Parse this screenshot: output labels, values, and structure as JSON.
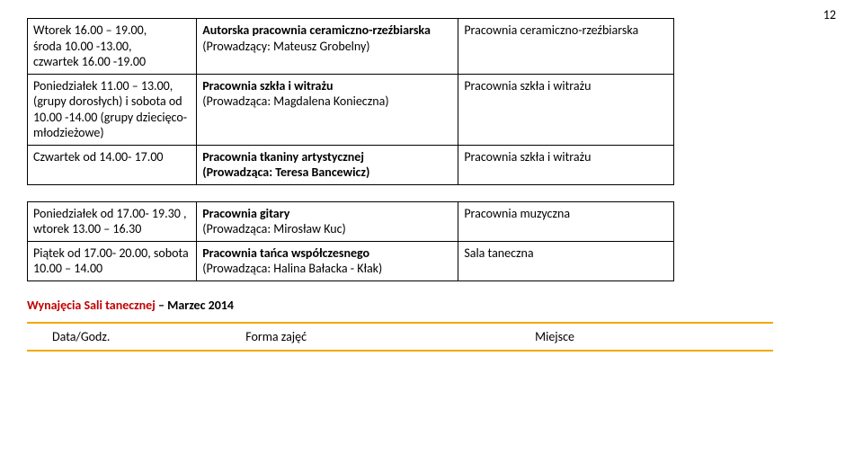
{
  "pageNumber": "12",
  "table1": {
    "rows": [
      {
        "c1": "Wtorek 16.00 – 19.00,\nśroda 10.00 -13.00,\nczwartek 16.00 -19.00",
        "c2_bold": "Autorska pracownia ceramiczno-rzeźbiarska",
        "c2_plain": "(Prowadzący: Mateusz Grobelny)",
        "c3": "Pracownia ceramiczno-rzeźbiarska"
      },
      {
        "c1": "Poniedziałek 11.00 – 13.00, (grupy dorosłych) i sobota od 10.00 -14.00 (grupy dziecięco-młodzieżowe)",
        "c2_bold": "Pracownia szkła i witrażu",
        "c2_plain": "(Prowadząca: Magdalena Konieczna)",
        "c3": "Pracownia szkła i witrażu"
      },
      {
        "c1": "Czwartek od 14.00- 17.00",
        "c2_bold": "Pracownia tkaniny artystycznej\n(Prowadząca: Teresa Bancewicz)",
        "c2_plain": "",
        "c3": "Pracownia szkła i witrażu"
      }
    ]
  },
  "table2": {
    "rows": [
      {
        "c1": "Poniedziałek od 17.00- 19.30 , wtorek 13.00 – 16.30",
        "c2_bold": "Pracownia gitary",
        "c2_plain": "(Prowadząca: Mirosław Kuc)",
        "c3": "Pracownia muzyczna"
      },
      {
        "c1": "Piątek od 17.00- 20.00, sobota 10.00 – 14.00",
        "c2_bold": "Pracownia tańca współczesnego",
        "c2_plain": "(Prowadząca: Halina Bałacka - Kłak)",
        "c3": "Sala taneczna"
      }
    ]
  },
  "sectionTitle": {
    "red": "Wynajęcia Sali tanecznej",
    "black": " – Marzec 2014"
  },
  "headerRow": {
    "h1": "Data/Godz.",
    "h2": "Forma zajęć",
    "h3": "Miejsce"
  }
}
